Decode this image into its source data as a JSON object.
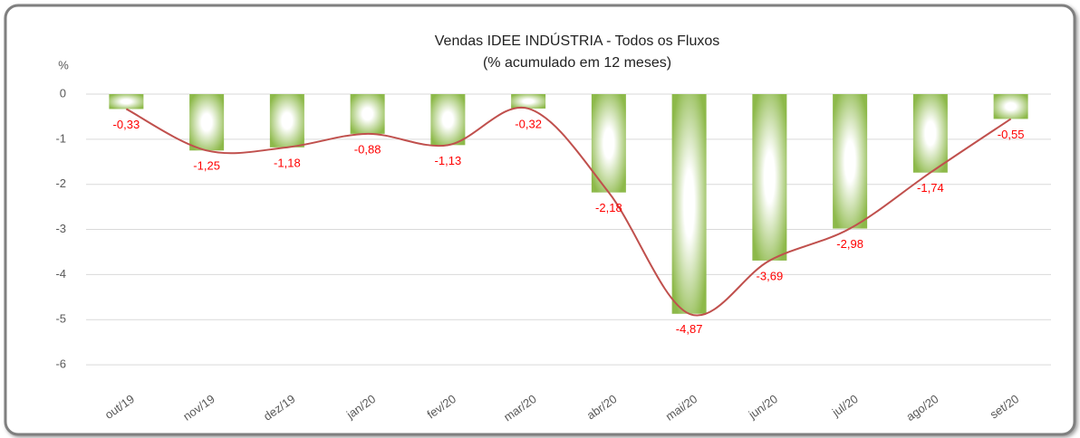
{
  "chart_data": {
    "type": "bar",
    "title": "Vendas IDEE INDÚSTRIA - Todos os Fluxos",
    "subtitle": "(% acumulado em 12 meses)",
    "y_label": "%",
    "categories": [
      "out/19",
      "nov/19",
      "dez/19",
      "jan/20",
      "fev/20",
      "mar/20",
      "abr/20",
      "mai/20",
      "jun/20",
      "jul/20",
      "ago/20",
      "set/20"
    ],
    "values": [
      -0.33,
      -1.25,
      -1.18,
      -0.88,
      -1.13,
      -0.32,
      -2.18,
      -4.87,
      -3.69,
      -2.98,
      -1.74,
      -0.55
    ],
    "value_labels": [
      "-0,33",
      "-1,25",
      "-1,18",
      "-0,88",
      "-1,13",
      "-0,32",
      "-2,18",
      "-4,87",
      "-3,69",
      "-2,98",
      "-1,74",
      "-0,55"
    ],
    "color": "#8db94a",
    "line_color": "#c0504d",
    "label_color": "#ff0000",
    "ylim": [
      -6.5,
      0
    ],
    "yticks": [
      0,
      -1,
      -2,
      -3,
      -4,
      -5,
      -6
    ],
    "grid": true
  }
}
